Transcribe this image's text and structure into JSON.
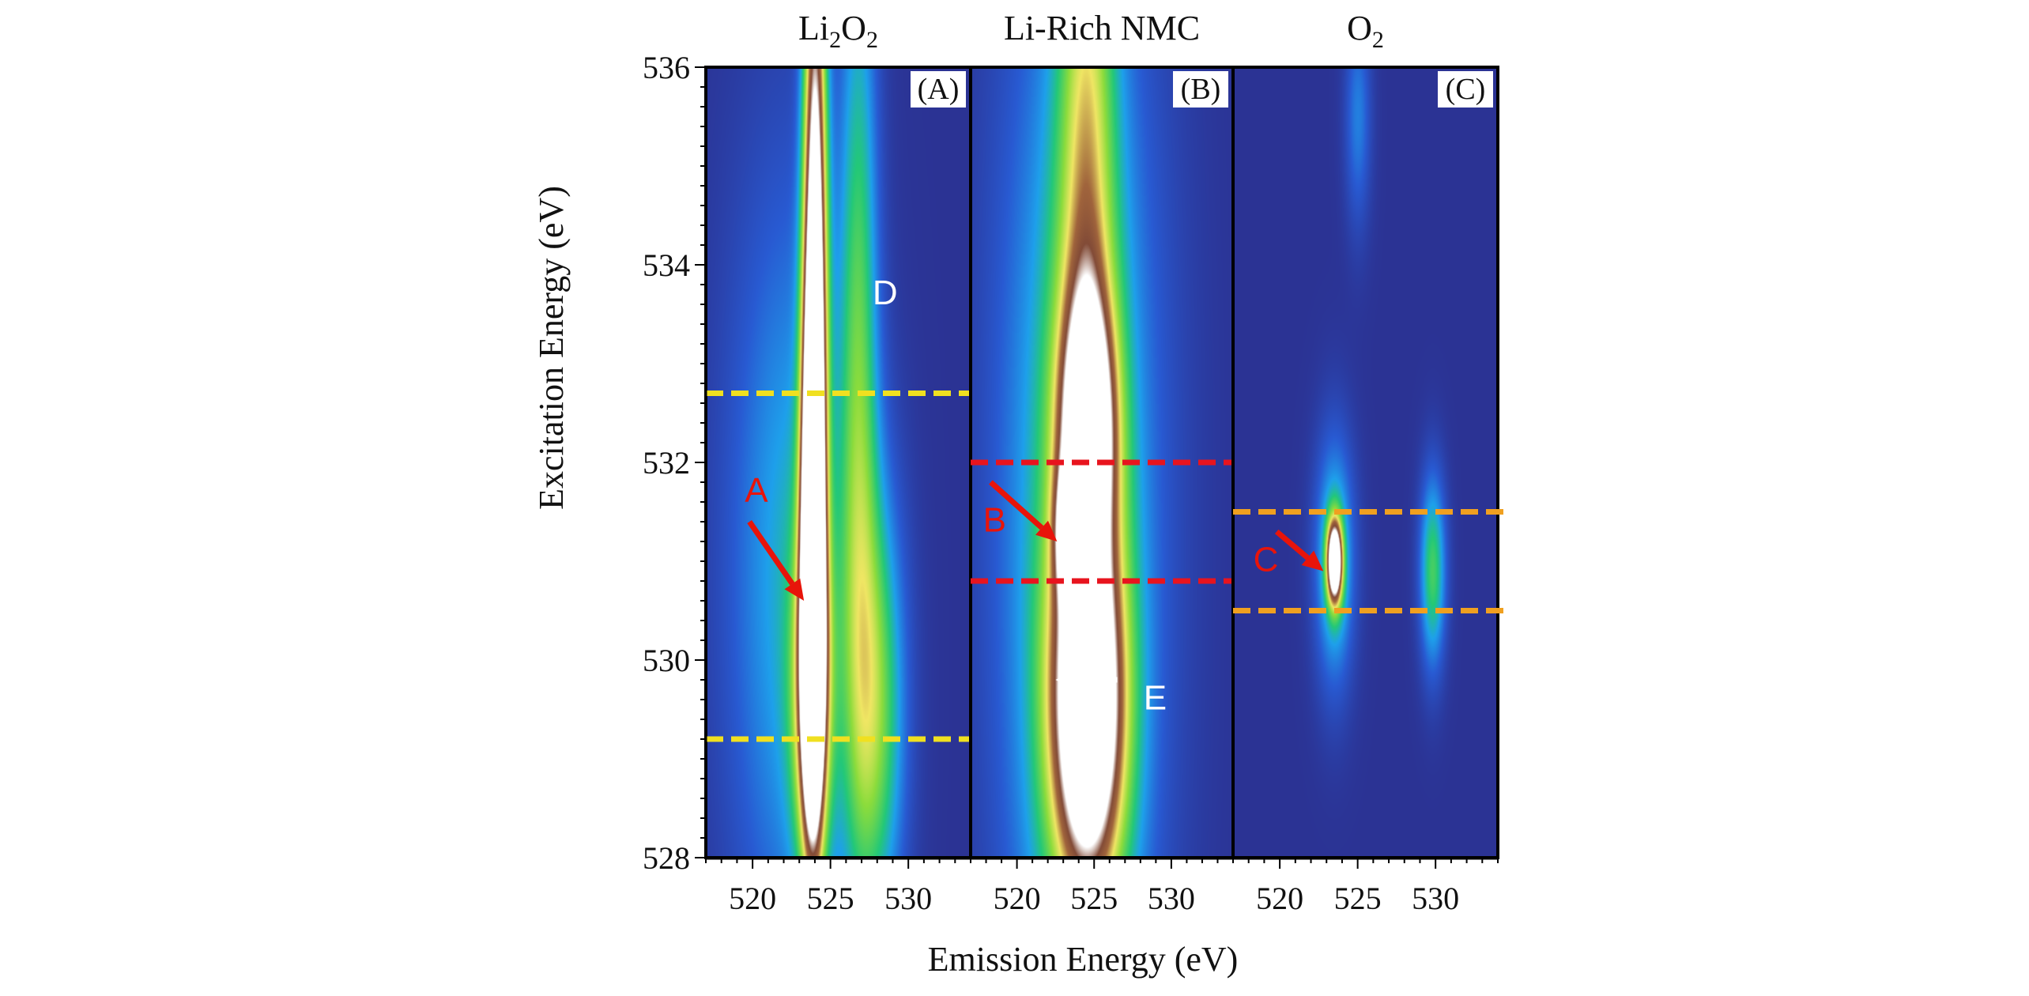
{
  "chart_data": {
    "type": "heatmap",
    "xlabel": "Emission Energy (eV)",
    "ylabel": "Excitation Energy (eV)",
    "ylim": [
      528,
      536
    ],
    "yticks": [
      "528",
      "530",
      "532",
      "534",
      "536"
    ],
    "panels": [
      {
        "id": "A",
        "tag": "(A)",
        "title_main": "Li",
        "title_sub1": "2",
        "title_mid": "O",
        "title_sub2": "2",
        "xlim": [
          517,
          534
        ],
        "xticks": [
          "520",
          "525",
          "530"
        ],
        "peaks": [
          {
            "x": 524.0,
            "y": 534.0,
            "wx": 0.55,
            "wy": 3.2,
            "amp": 1.05
          },
          {
            "x": 523.8,
            "y": 531.0,
            "wx": 0.5,
            "wy": 1.8,
            "amp": 1.05
          },
          {
            "x": 523.8,
            "y": 529.6,
            "wx": 0.9,
            "wy": 1.2,
            "amp": 0.6
          },
          {
            "x": 526.8,
            "y": 533.0,
            "wx": 0.9,
            "wy": 3.5,
            "amp": 0.42
          },
          {
            "x": 528.0,
            "y": 529.5,
            "wx": 1.3,
            "wy": 1.6,
            "amp": 0.45
          },
          {
            "x": 522.5,
            "y": 530.8,
            "wx": 3.0,
            "wy": 3.0,
            "amp": 0.32
          }
        ],
        "dashed_lines": [
          {
            "y": 532.7,
            "color": "#f0e020"
          },
          {
            "y": 529.2,
            "color": "#f0e020"
          }
        ],
        "annotations": [
          {
            "text": "A",
            "color": "#e8140a",
            "x": 519.5,
            "y": 531.6
          },
          {
            "text": "D",
            "color": "#ffffff",
            "x": 527.7,
            "y": 533.6
          }
        ]
      },
      {
        "id": "B",
        "tag": "(B)",
        "title_main": "Li-Rich NMC",
        "xlim": [
          517,
          534
        ],
        "xticks": [
          "520",
          "525",
          "530"
        ],
        "peaks": [
          {
            "x": 524.6,
            "y": 529.5,
            "wx": 1.7,
            "wy": 1.3,
            "amp": 1.1
          },
          {
            "x": 524.6,
            "y": 532.4,
            "wx": 1.3,
            "wy": 0.9,
            "amp": 0.8
          },
          {
            "x": 523.5,
            "y": 531.3,
            "wx": 0.7,
            "wy": 0.45,
            "amp": 0.55
          },
          {
            "x": 524.0,
            "y": 531.3,
            "wx": 3.6,
            "wy": 4.5,
            "amp": 0.45
          },
          {
            "x": 524.5,
            "y": 535.0,
            "wx": 1.3,
            "wy": 3.0,
            "amp": 0.45
          }
        ],
        "dashed_lines": [
          {
            "y": 532.0,
            "color": "#e8141e"
          },
          {
            "y": 530.8,
            "color": "#e8141e"
          }
        ],
        "annotations": [
          {
            "text": "B",
            "color": "#e8140a",
            "x": 517.8,
            "y": 531.3
          },
          {
            "text": "E",
            "color": "#ffffff",
            "x": 528.2,
            "y": 529.5
          }
        ]
      },
      {
        "id": "C",
        "tag": "(C)",
        "title_main": "O",
        "title_sub1": "2",
        "xlim": [
          517,
          534
        ],
        "xticks": [
          "520",
          "525",
          "530"
        ],
        "peaks": [
          {
            "x": 523.5,
            "y": 531.0,
            "wx": 0.35,
            "wy": 0.3,
            "amp": 1.1
          },
          {
            "x": 523.5,
            "y": 531.0,
            "wx": 0.9,
            "wy": 0.9,
            "amp": 0.4
          },
          {
            "x": 529.8,
            "y": 530.9,
            "wx": 0.6,
            "wy": 0.7,
            "amp": 0.45
          },
          {
            "x": 525.0,
            "y": 535.5,
            "wx": 0.6,
            "wy": 0.8,
            "amp": 0.22
          }
        ],
        "dashed_lines": [
          {
            "y": 531.5,
            "color": "#f0a020"
          },
          {
            "y": 530.5,
            "color": "#f0a020"
          }
        ],
        "annotations": [
          {
            "text": "C",
            "color": "#e8140a",
            "x": 518.3,
            "y": 530.9
          }
        ]
      }
    ]
  }
}
